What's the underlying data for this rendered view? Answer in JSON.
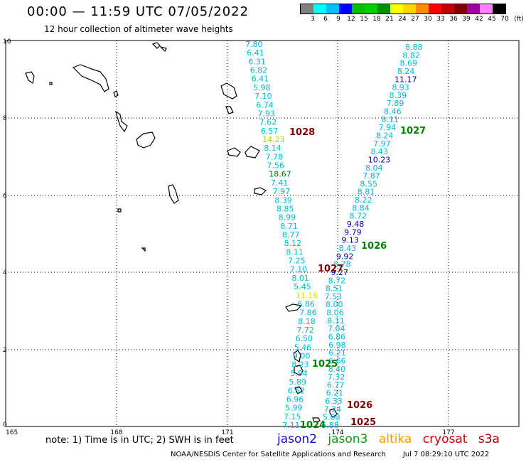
{
  "title": "00:00 — 11:59 UTC 07/05/2022",
  "subtitle": "12 hour collection of altimeter wave heights",
  "legend": {
    "colors": [
      "#808080",
      "#00ffff",
      "#00bfff",
      "#0000ff",
      "#00c000",
      "#00d000",
      "#009000",
      "#ffff00",
      "#ffd700",
      "#ff8c00",
      "#ff0000",
      "#c00000",
      "#800000",
      "#a000a0",
      "#ff80ff",
      "#000000"
    ],
    "labels": [
      "3",
      "6",
      "9",
      "12",
      "15",
      "18",
      "21",
      "24",
      "27",
      "30",
      "33",
      "36",
      "39",
      "42",
      "45",
      "70",
      "(ft)"
    ]
  },
  "axes": {
    "y_labels": [
      "10",
      "8",
      "6",
      "4",
      "2",
      "0"
    ],
    "x_labels": [
      "165",
      "168",
      "171",
      "174",
      "177"
    ]
  },
  "track_a": [
    "7.80",
    "6.41",
    "6.31",
    "6.82",
    "6.41",
    "5.98",
    "7.10",
    "6.74",
    "7.93",
    "7.62",
    "6.57",
    "14.23",
    "8.14",
    "7.78",
    "7.56",
    "18.67",
    "7.41",
    "7.97",
    "8.39",
    "8.85",
    "8.99",
    "8.71",
    "8.77",
    "8.12",
    "8.11",
    "7.25",
    "7.10",
    "8.01",
    "5.45",
    "11.16",
    "6.86",
    "7.86",
    "8.18",
    "7.72",
    "6.50",
    "5.46",
    "9.00",
    "8.23",
    "5.94",
    "5.89",
    "6.52",
    "6.96",
    "5.99",
    "7.15",
    "7.11"
  ],
  "track_b": [
    "8.88",
    "8.82",
    "8.69",
    "8.24",
    "11.17",
    "8.93",
    "8.39",
    "7.89",
    "8.46",
    "8.11",
    "7.94",
    "8.24",
    "7.97",
    "8.43",
    "10.23",
    "8.04",
    "7.87",
    "8.55",
    "8.81",
    "8.22",
    "8.84",
    "8.72",
    "9.48",
    "9.79",
    "9.13",
    "8.43",
    "9.92",
    "8.78",
    "9.27",
    "8.72",
    "8.51",
    "7.53",
    "8.00",
    "8.06",
    "8.11",
    "7.04",
    "6.86",
    "6.98",
    "6.21",
    "6.66",
    "8.40",
    "7.32",
    "6.77",
    "6.21",
    "6.33",
    "7.24",
    "5.60",
    "6.88"
  ],
  "pressure": [
    "1028",
    "1027",
    "1026",
    "1027",
    "1025",
    "1026",
    "1025",
    "1024"
  ],
  "note": "note: 1) Time is in UTC; 2) SWH is in feet",
  "satellites": [
    "jason2",
    "jason3",
    "altika",
    "cryosat",
    "s3a"
  ],
  "credit": "NOAA/NESDIS Center for Satellite Applications and Research",
  "credit_time": "Jul  7 08:29:10 UTC 2022"
}
